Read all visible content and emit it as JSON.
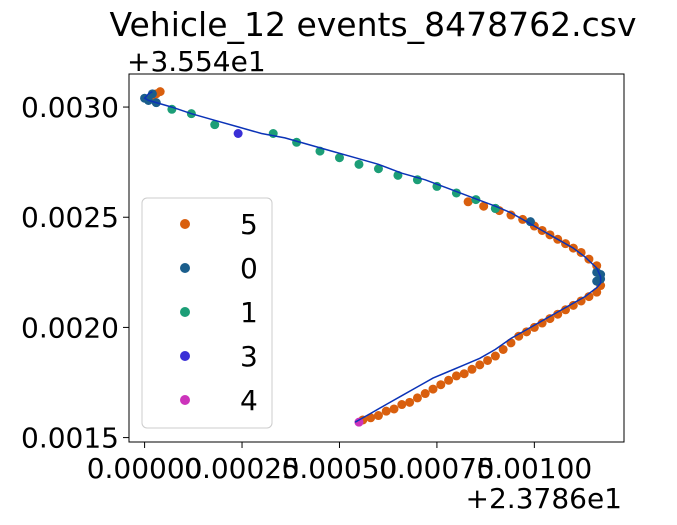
{
  "chart_data": {
    "type": "scatter",
    "title": "Vehicle_12 events_8478762.csv",
    "xlabel": "",
    "ylabel": "",
    "x_offset_label": "+2.3786e1",
    "y_offset_label": "+3.554e1",
    "xlim": [
      -4e-05,
      0.00123
    ],
    "ylim": [
      0.00148,
      0.00315
    ],
    "x_ticks": [
      0.0,
      0.00025,
      0.0005,
      0.00075,
      0.001
    ],
    "x_tick_labels": [
      "0.00000",
      "0.00025",
      "0.00050",
      "0.00075",
      "0.00100"
    ],
    "y_ticks": [
      0.0015,
      0.002,
      0.0025,
      0.003
    ],
    "y_tick_labels": [
      "0.0015",
      "0.0020",
      "0.0025",
      "0.0030"
    ],
    "grid": false,
    "legend_position": "center-left",
    "path_line": {
      "color": "#0b33b7",
      "x": [
        0.00054,
        0.00058,
        0.00062,
        0.00066,
        0.0007,
        0.00074,
        0.00078,
        0.00082,
        0.00086,
        0.0009,
        0.00094,
        0.00098,
        0.00102,
        0.00106,
        0.0011,
        0.00113,
        0.00116,
        0.00117,
        0.00117,
        0.00116,
        0.00113,
        0.0011,
        0.00106,
        0.00102,
        0.00098,
        0.00094,
        0.0009,
        0.00084,
        0.00078,
        0.00072,
        0.00066,
        0.0006,
        0.00054,
        0.00048,
        0.00042,
        0.00036,
        0.0003,
        0.00024,
        0.00018,
        0.00012,
        7e-05,
        3e-05,
        1e-05,
        0.0,
        1e-05,
        2e-05
      ],
      "y": [
        0.00157,
        0.00161,
        0.00165,
        0.00169,
        0.00173,
        0.00177,
        0.0018,
        0.00183,
        0.00186,
        0.0019,
        0.00195,
        0.00199,
        0.00203,
        0.00207,
        0.00211,
        0.00214,
        0.00218,
        0.0022,
        0.00223,
        0.00227,
        0.00232,
        0.00236,
        0.0024,
        0.00244,
        0.00248,
        0.00252,
        0.00255,
        0.00259,
        0.00263,
        0.00267,
        0.0027,
        0.00274,
        0.00277,
        0.0028,
        0.00283,
        0.00286,
        0.00288,
        0.00291,
        0.00294,
        0.00297,
        0.003,
        0.00302,
        0.00303,
        0.00304,
        0.00306,
        0.00307
      ]
    },
    "series": [
      {
        "name": "5",
        "color": "#d95f0e",
        "x": [
          0.00056,
          0.00058,
          0.0006,
          0.00062,
          0.00064,
          0.00066,
          0.00068,
          0.0007,
          0.00072,
          0.00074,
          0.00076,
          0.00078,
          0.0008,
          0.00082,
          0.00084,
          0.00086,
          0.00088,
          0.0009,
          0.00092,
          0.00094,
          0.00096,
          0.00098,
          0.001,
          0.00102,
          0.00104,
          0.00106,
          0.00108,
          0.0011,
          0.00112,
          0.00114,
          0.00116,
          0.00117,
          0.00116,
          0.00114,
          0.00112,
          0.0011,
          0.00108,
          0.00106,
          0.00104,
          0.00102,
          0.001,
          0.00097,
          0.00094,
          0.00091,
          0.00087,
          0.00083,
          2e-05,
          3e-05,
          4e-05
        ],
        "y": [
          0.00158,
          0.00159,
          0.0016,
          0.00162,
          0.00163,
          0.00165,
          0.00166,
          0.00168,
          0.0017,
          0.00172,
          0.00174,
          0.00176,
          0.00178,
          0.00179,
          0.00181,
          0.00183,
          0.00185,
          0.00187,
          0.0019,
          0.00193,
          0.00196,
          0.00198,
          0.002,
          0.00202,
          0.00204,
          0.00206,
          0.00208,
          0.0021,
          0.00212,
          0.00214,
          0.00216,
          0.00219,
          0.00228,
          0.00231,
          0.00234,
          0.00236,
          0.00238,
          0.0024,
          0.00242,
          0.00244,
          0.00246,
          0.00249,
          0.00251,
          0.00253,
          0.00255,
          0.00257,
          0.00305,
          0.00306,
          0.00307
        ]
      },
      {
        "name": "0",
        "color": "#1b5e8c",
        "x": [
          0.00116,
          0.00117,
          0.00117,
          0.00116,
          0.00099,
          0.0009,
          1e-05,
          0.0,
          2e-05,
          3e-05
        ],
        "y": [
          0.00221,
          0.00222,
          0.00224,
          0.00225,
          0.00248,
          0.00254,
          0.00303,
          0.00304,
          0.00306,
          0.00302
        ]
      },
      {
        "name": "1",
        "color": "#1c9e77",
        "x": [
          0.0009,
          0.00085,
          0.0008,
          0.00075,
          0.0007,
          0.00065,
          0.0006,
          0.00055,
          0.0005,
          0.00045,
          0.00039,
          0.00033,
          0.00018,
          0.00012,
          7e-05
        ],
        "y": [
          0.00254,
          0.00258,
          0.00261,
          0.00264,
          0.00267,
          0.00269,
          0.00272,
          0.00274,
          0.00277,
          0.0028,
          0.00284,
          0.00288,
          0.00292,
          0.00297,
          0.00299
        ]
      },
      {
        "name": "3",
        "color": "#3a2fd6",
        "x": [
          0.00024
        ],
        "y": [
          0.00288
        ]
      },
      {
        "name": "4",
        "color": "#cc33bb",
        "x": [
          0.00055
        ],
        "y": [
          0.00157
        ]
      }
    ]
  }
}
